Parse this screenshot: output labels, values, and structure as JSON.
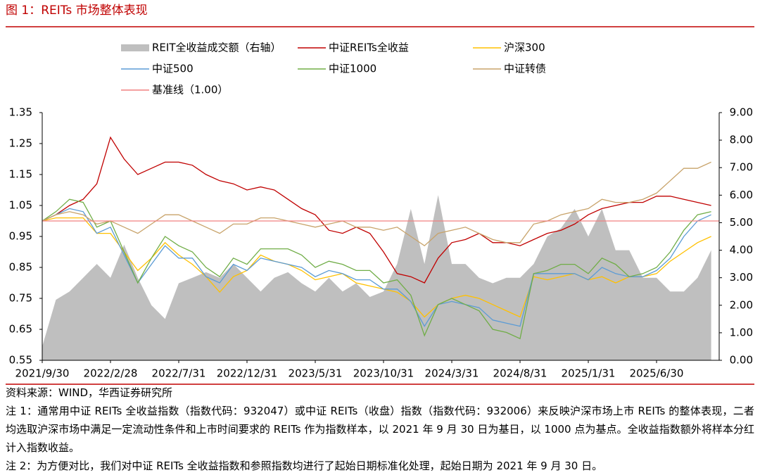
{
  "chart_data": {
    "type": "line",
    "title": "图 1：REITs 市场整体表现",
    "source": "资料来源：WIND，华西证券研究所",
    "notes": [
      "注 1：通常用中证 REITs 全收益指数（指数代码：932047）或中证 REITs（收盘）指数（指数代码：932006）来反映沪深市场上市 REITs 的整体表现，二者均选取沪深市场中满足一定流动性条件和上市时间要求的 REITs 作为指数样本，以 2021 年 9 月 30 日为基日，以 1000 点为基点。全收益指数额外将样本分红计入指数收益。",
      "注 2：为方便对比，我们对中证 REITs 全收益指数和参照指数均进行了起始日期标准化处理，起始日期为 2021 年 9 月 30 日。"
    ],
    "categories": [
      "2021/9/30",
      null,
      null,
      null,
      null,
      "2022/2/28",
      null,
      null,
      null,
      null,
      "2022/7/31",
      null,
      null,
      null,
      null,
      "2022/12/31",
      null,
      null,
      null,
      null,
      "2023/5/31",
      null,
      null,
      null,
      null,
      "2023/10/31",
      null,
      null,
      null,
      null,
      "2024/3/31",
      null,
      null,
      null,
      null,
      "2024/8/31",
      null,
      null,
      null,
      null,
      "2025/1/31",
      null,
      null,
      null,
      null,
      "2025/6/30",
      null,
      null,
      null,
      null
    ],
    "ylim": [
      0.55,
      1.35
    ],
    "yticks": [
      0.55,
      0.65,
      0.75,
      0.85,
      0.95,
      1.05,
      1.15,
      1.25,
      1.35
    ],
    "y2lim": [
      0,
      9
    ],
    "y2ticks": [
      {
        "value": 0,
        "label": "0.00"
      },
      {
        "value": 1,
        "label": "1.00"
      },
      {
        "value": 2,
        "label": "2.00"
      },
      {
        "value": 3,
        "label": "3.00"
      },
      {
        "value": 4,
        "label": "4.00"
      },
      {
        "value": 5,
        "label": "5.00"
      },
      {
        "value": 6,
        "label": "6.00"
      },
      {
        "value": 7,
        "label": "7.00"
      },
      {
        "value": 8,
        "label": "8.00"
      },
      {
        "value": 9,
        "label": "9.00"
      }
    ],
    "reference_line": {
      "name": "基准线（1.00）",
      "value": 1,
      "color": "#f08080"
    },
    "series": [
      {
        "name": "REIT全收益成交额（右轴）",
        "type": "area",
        "axis": "y2",
        "color": "#bfbfbf",
        "values": [
          0.5,
          2.2,
          2.5,
          3.0,
          3.5,
          3.0,
          4.2,
          3.0,
          2.0,
          1.5,
          2.8,
          3.0,
          3.2,
          3.0,
          3.5,
          3.0,
          2.5,
          3.0,
          3.2,
          2.8,
          2.5,
          3.0,
          2.5,
          2.8,
          2.3,
          2.5,
          3.5,
          5.5,
          3.5,
          6.0,
          3.5,
          3.5,
          3.0,
          2.8,
          3.0,
          3.0,
          3.5,
          4.5,
          4.8,
          5.5,
          4.5,
          5.5,
          4.0,
          4.0,
          3.0,
          3.0,
          2.5,
          2.5,
          3.0,
          4.0
        ]
      },
      {
        "name": "中证REITs全收益",
        "type": "line",
        "color": "#c00000",
        "values": [
          1.0,
          1.02,
          1.05,
          1.07,
          1.12,
          1.27,
          1.2,
          1.15,
          1.17,
          1.19,
          1.19,
          1.18,
          1.15,
          1.13,
          1.12,
          1.1,
          1.11,
          1.1,
          1.07,
          1.04,
          1.02,
          0.97,
          0.96,
          0.98,
          0.96,
          0.9,
          0.83,
          0.82,
          0.8,
          0.88,
          0.93,
          0.94,
          0.96,
          0.93,
          0.93,
          0.92,
          0.94,
          0.96,
          0.97,
          0.99,
          1.02,
          1.04,
          1.05,
          1.06,
          1.06,
          1.08,
          1.08,
          1.07,
          1.06,
          1.05
        ]
      },
      {
        "name": "沪深300",
        "type": "line",
        "color": "#ffc000",
        "values": [
          1.0,
          1.01,
          1.01,
          1.01,
          0.96,
          0.96,
          0.9,
          0.84,
          0.88,
          0.93,
          0.89,
          0.86,
          0.82,
          0.77,
          0.82,
          0.84,
          0.89,
          0.87,
          0.86,
          0.84,
          0.81,
          0.82,
          0.83,
          0.8,
          0.79,
          0.78,
          0.77,
          0.74,
          0.69,
          0.73,
          0.75,
          0.76,
          0.75,
          0.73,
          0.71,
          0.69,
          0.82,
          0.81,
          0.82,
          0.83,
          0.81,
          0.82,
          0.8,
          0.82,
          0.82,
          0.83,
          0.87,
          0.9,
          0.93,
          0.95
        ]
      },
      {
        "name": "中证500",
        "type": "line",
        "color": "#5b9bd5",
        "values": [
          1.0,
          1.02,
          1.04,
          1.03,
          0.96,
          0.98,
          0.89,
          0.8,
          0.86,
          0.92,
          0.88,
          0.88,
          0.82,
          0.8,
          0.86,
          0.84,
          0.88,
          0.87,
          0.86,
          0.85,
          0.82,
          0.84,
          0.83,
          0.81,
          0.81,
          0.78,
          0.78,
          0.74,
          0.66,
          0.73,
          0.74,
          0.73,
          0.72,
          0.68,
          0.67,
          0.66,
          0.83,
          0.83,
          0.83,
          0.83,
          0.81,
          0.85,
          0.83,
          0.82,
          0.82,
          0.84,
          0.88,
          0.95,
          1.0,
          1.02
        ]
      },
      {
        "name": "中证1000",
        "type": "line",
        "color": "#70ad47",
        "values": [
          1.0,
          1.03,
          1.07,
          1.06,
          0.98,
          1.0,
          0.9,
          0.8,
          0.88,
          0.95,
          0.92,
          0.9,
          0.85,
          0.82,
          0.88,
          0.86,
          0.91,
          0.91,
          0.91,
          0.89,
          0.85,
          0.87,
          0.86,
          0.84,
          0.84,
          0.8,
          0.81,
          0.76,
          0.63,
          0.73,
          0.75,
          0.73,
          0.71,
          0.65,
          0.64,
          0.62,
          0.83,
          0.84,
          0.86,
          0.86,
          0.83,
          0.88,
          0.86,
          0.82,
          0.83,
          0.85,
          0.9,
          0.97,
          1.02,
          1.03
        ]
      },
      {
        "name": "中证转债",
        "type": "line",
        "color": "#c8a36a",
        "values": [
          1.0,
          1.02,
          1.03,
          1.02,
          0.99,
          1.0,
          0.98,
          0.96,
          0.99,
          1.02,
          1.02,
          1.0,
          0.98,
          0.96,
          0.99,
          0.99,
          1.01,
          1.01,
          1.0,
          0.99,
          0.98,
          0.99,
          1.0,
          0.98,
          0.98,
          0.97,
          0.98,
          0.95,
          0.92,
          0.96,
          0.97,
          0.98,
          0.96,
          0.94,
          0.93,
          0.93,
          0.99,
          1.0,
          1.02,
          1.03,
          1.04,
          1.07,
          1.06,
          1.06,
          1.07,
          1.09,
          1.13,
          1.17,
          1.17,
          1.19
        ]
      }
    ]
  }
}
